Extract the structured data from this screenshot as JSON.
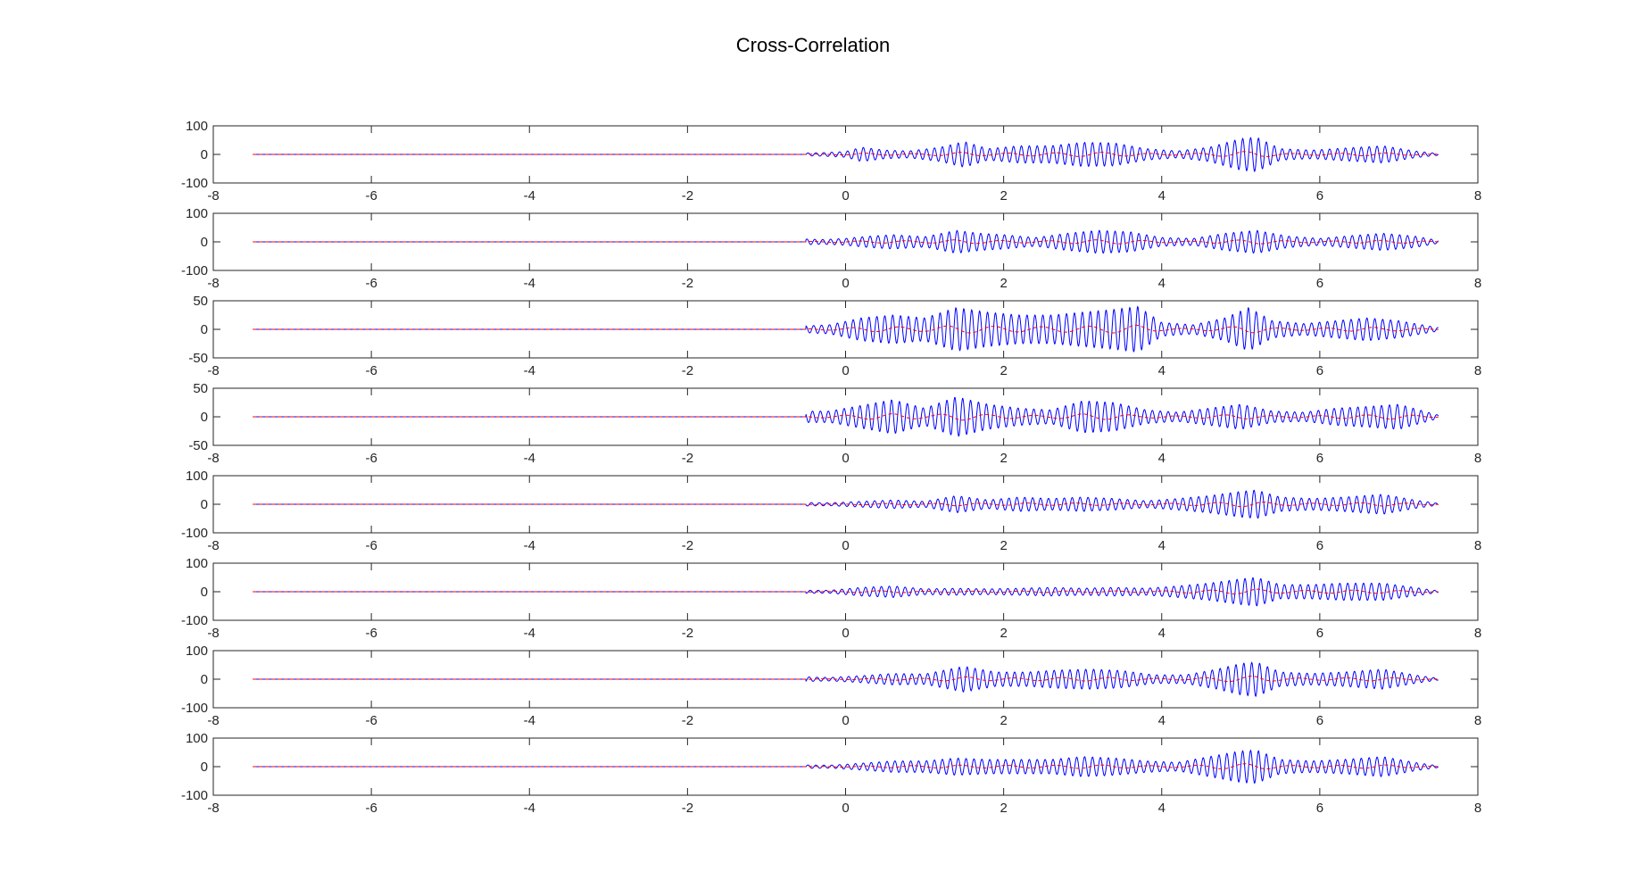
{
  "figure_title": "Cross-Correlation",
  "colors": {
    "signal": "#0000ff",
    "envelope": "#ff0000",
    "axes": "#262626",
    "background": "#ffffff"
  },
  "chart_data": [
    {
      "type": "line",
      "panel": 1,
      "xlim": [
        -8,
        8
      ],
      "ylim": [
        -100,
        100
      ],
      "xticks": [
        -8,
        -6,
        -4,
        -2,
        0,
        2,
        4,
        6,
        8
      ],
      "yticks": [
        100,
        0,
        -100
      ],
      "x_start": -7.5,
      "x_end": 7.5,
      "onset": -0.5,
      "carrier_period": 0.1,
      "envelope_x": [
        -0.5,
        -0.3,
        0,
        0.2,
        0.5,
        0.8,
        1.2,
        1.5,
        1.8,
        2.2,
        2.6,
        3.0,
        3.4,
        3.8,
        4.2,
        4.6,
        5.0,
        5.2,
        5.5,
        5.9,
        6.3,
        6.8,
        7.2,
        7.5
      ],
      "envelope_y": [
        5,
        6,
        10,
        25,
        15,
        12,
        25,
        45,
        20,
        30,
        30,
        42,
        40,
        20,
        12,
        25,
        55,
        60,
        20,
        15,
        22,
        30,
        12,
        3
      ],
      "series": [
        {
          "name": "",
          "color": "#0000ff"
        },
        {
          "name": "",
          "color": "#ff0000",
          "dashed": true
        }
      ]
    },
    {
      "type": "line",
      "panel": 2,
      "xlim": [
        -8,
        8
      ],
      "ylim": [
        -100,
        100
      ],
      "xticks": [
        -8,
        -6,
        -4,
        -2,
        0,
        2,
        4,
        6,
        8
      ],
      "yticks": [
        100,
        0,
        -100
      ],
      "x_start": -7.5,
      "x_end": 7.5,
      "onset": -0.5,
      "carrier_period": 0.1,
      "envelope_x": [
        -0.5,
        -0.3,
        0,
        0.3,
        0.6,
        1.0,
        1.4,
        1.7,
        2.0,
        2.4,
        2.8,
        3.2,
        3.6,
        4.0,
        4.4,
        4.8,
        5.2,
        5.6,
        6.0,
        6.4,
        6.8,
        7.2,
        7.5
      ],
      "envelope_y": [
        10,
        8,
        12,
        20,
        25,
        18,
        40,
        30,
        25,
        15,
        30,
        40,
        35,
        15,
        12,
        30,
        40,
        20,
        12,
        22,
        30,
        20,
        5
      ],
      "series": [
        {
          "name": "",
          "color": "#0000ff"
        },
        {
          "name": "",
          "color": "#ff0000",
          "dashed": true
        }
      ]
    },
    {
      "type": "line",
      "panel": 3,
      "xlim": [
        -8,
        8
      ],
      "ylim": [
        -50,
        50
      ],
      "xticks": [
        -8,
        -6,
        -4,
        -2,
        0,
        2,
        4,
        6,
        8
      ],
      "yticks": [
        50,
        0,
        -50
      ],
      "x_start": -7.5,
      "x_end": 7.5,
      "onset": -0.5,
      "carrier_period": 0.1,
      "envelope_x": [
        -0.5,
        -0.2,
        0.2,
        0.6,
        1.0,
        1.4,
        1.8,
        2.2,
        2.6,
        3.0,
        3.4,
        3.7,
        4.0,
        4.4,
        4.8,
        5.1,
        5.4,
        5.8,
        6.2,
        6.6,
        7.0,
        7.5
      ],
      "envelope_y": [
        6,
        8,
        20,
        25,
        20,
        38,
        30,
        25,
        25,
        30,
        35,
        40,
        12,
        8,
        20,
        38,
        15,
        10,
        15,
        20,
        15,
        3
      ],
      "series": [
        {
          "name": "",
          "color": "#0000ff"
        },
        {
          "name": "",
          "color": "#ff0000",
          "dashed": true
        }
      ]
    },
    {
      "type": "line",
      "panel": 4,
      "xlim": [
        -8,
        8
      ],
      "ylim": [
        -50,
        50
      ],
      "xticks": [
        -8,
        -6,
        -4,
        -2,
        0,
        2,
        4,
        6,
        8
      ],
      "yticks": [
        50,
        0,
        -50
      ],
      "x_start": -7.5,
      "x_end": 7.5,
      "onset": -0.5,
      "carrier_period": 0.1,
      "envelope_x": [
        -0.5,
        -0.2,
        0.2,
        0.6,
        1.0,
        1.4,
        1.8,
        2.2,
        2.6,
        3.0,
        3.4,
        3.8,
        4.2,
        4.6,
        5.0,
        5.4,
        5.8,
        6.2,
        6.6,
        7.0,
        7.5
      ],
      "envelope_y": [
        10,
        10,
        20,
        30,
        15,
        35,
        22,
        15,
        12,
        28,
        25,
        12,
        8,
        15,
        22,
        10,
        8,
        15,
        18,
        22,
        3
      ],
      "series": [
        {
          "name": "",
          "color": "#0000ff"
        },
        {
          "name": "",
          "color": "#ff0000",
          "dashed": true
        }
      ]
    },
    {
      "type": "line",
      "panel": 5,
      "xlim": [
        -8,
        8
      ],
      "ylim": [
        -100,
        100
      ],
      "xticks": [
        -8,
        -6,
        -4,
        -2,
        0,
        2,
        4,
        6,
        8
      ],
      "yticks": [
        100,
        0,
        -100
      ],
      "x_start": -7.5,
      "x_end": 7.5,
      "onset": -0.5,
      "carrier_period": 0.1,
      "envelope_x": [
        -0.5,
        -0.2,
        0.2,
        0.6,
        1.0,
        1.4,
        1.8,
        2.2,
        2.6,
        3.0,
        3.4,
        3.8,
        4.2,
        4.6,
        5.0,
        5.2,
        5.5,
        5.9,
        6.3,
        6.8,
        7.2,
        7.5
      ],
      "envelope_y": [
        6,
        5,
        10,
        15,
        10,
        30,
        15,
        25,
        20,
        25,
        20,
        12,
        20,
        30,
        45,
        50,
        25,
        20,
        25,
        35,
        15,
        3
      ],
      "series": [
        {
          "name": "",
          "color": "#0000ff"
        },
        {
          "name": "",
          "color": "#ff0000",
          "dashed": true
        }
      ]
    },
    {
      "type": "line",
      "panel": 6,
      "xlim": [
        -8,
        8
      ],
      "ylim": [
        -100,
        100
      ],
      "xticks": [
        -8,
        -6,
        -4,
        -2,
        0,
        2,
        4,
        6,
        8
      ],
      "yticks": [
        100,
        0,
        -100
      ],
      "x_start": -7.5,
      "x_end": 7.5,
      "onset": -0.5,
      "carrier_period": 0.1,
      "envelope_x": [
        -0.5,
        -0.2,
        0.2,
        0.6,
        1.0,
        1.4,
        1.8,
        2.2,
        2.6,
        3.0,
        3.4,
        3.8,
        4.2,
        4.6,
        5.0,
        5.2,
        5.5,
        5.9,
        6.3,
        6.8,
        7.2,
        7.5
      ],
      "envelope_y": [
        5,
        5,
        15,
        20,
        10,
        12,
        10,
        12,
        15,
        12,
        15,
        12,
        20,
        30,
        45,
        50,
        25,
        25,
        30,
        30,
        15,
        3
      ],
      "series": [
        {
          "name": "",
          "color": "#0000ff"
        },
        {
          "name": "",
          "color": "#ff0000",
          "dashed": true
        }
      ]
    },
    {
      "type": "line",
      "panel": 7,
      "xlim": [
        -8,
        8
      ],
      "ylim": [
        -100,
        100
      ],
      "xticks": [
        -8,
        -6,
        -4,
        -2,
        0,
        2,
        4,
        6,
        8
      ],
      "yticks": [
        100,
        0,
        -100
      ],
      "x_start": -7.5,
      "x_end": 7.5,
      "onset": -0.5,
      "carrier_period": 0.1,
      "envelope_x": [
        -0.5,
        -0.2,
        0.2,
        0.6,
        1.0,
        1.5,
        1.9,
        2.3,
        2.7,
        3.1,
        3.5,
        3.9,
        4.3,
        4.7,
        5.0,
        5.2,
        5.5,
        5.9,
        6.3,
        6.8,
        7.2,
        7.5
      ],
      "envelope_y": [
        8,
        6,
        12,
        20,
        18,
        45,
        25,
        25,
        32,
        35,
        30,
        15,
        15,
        35,
        55,
        60,
        25,
        20,
        25,
        35,
        15,
        3
      ],
      "series": [
        {
          "name": "",
          "color": "#0000ff"
        },
        {
          "name": "",
          "color": "#ff0000",
          "dashed": true
        }
      ]
    },
    {
      "type": "line",
      "panel": 8,
      "xlim": [
        -8,
        8
      ],
      "ylim": [
        -100,
        100
      ],
      "xticks": [
        -8,
        -6,
        -4,
        -2,
        0,
        2,
        4,
        6,
        8
      ],
      "yticks": [
        100,
        0,
        -100
      ],
      "x_start": -7.5,
      "x_end": 7.5,
      "onset": -0.5,
      "carrier_period": 0.1,
      "envelope_x": [
        -0.5,
        -0.2,
        0.2,
        0.6,
        1.0,
        1.4,
        1.8,
        2.2,
        2.6,
        3.0,
        3.4,
        3.8,
        4.2,
        4.6,
        5.0,
        5.2,
        5.5,
        5.9,
        6.3,
        6.8,
        7.2,
        7.5
      ],
      "envelope_y": [
        6,
        5,
        12,
        20,
        20,
        30,
        25,
        25,
        25,
        35,
        30,
        20,
        15,
        35,
        55,
        58,
        25,
        20,
        25,
        35,
        15,
        3
      ],
      "series": [
        {
          "name": "",
          "color": "#0000ff"
        },
        {
          "name": "",
          "color": "#ff0000",
          "dashed": true
        }
      ]
    }
  ]
}
